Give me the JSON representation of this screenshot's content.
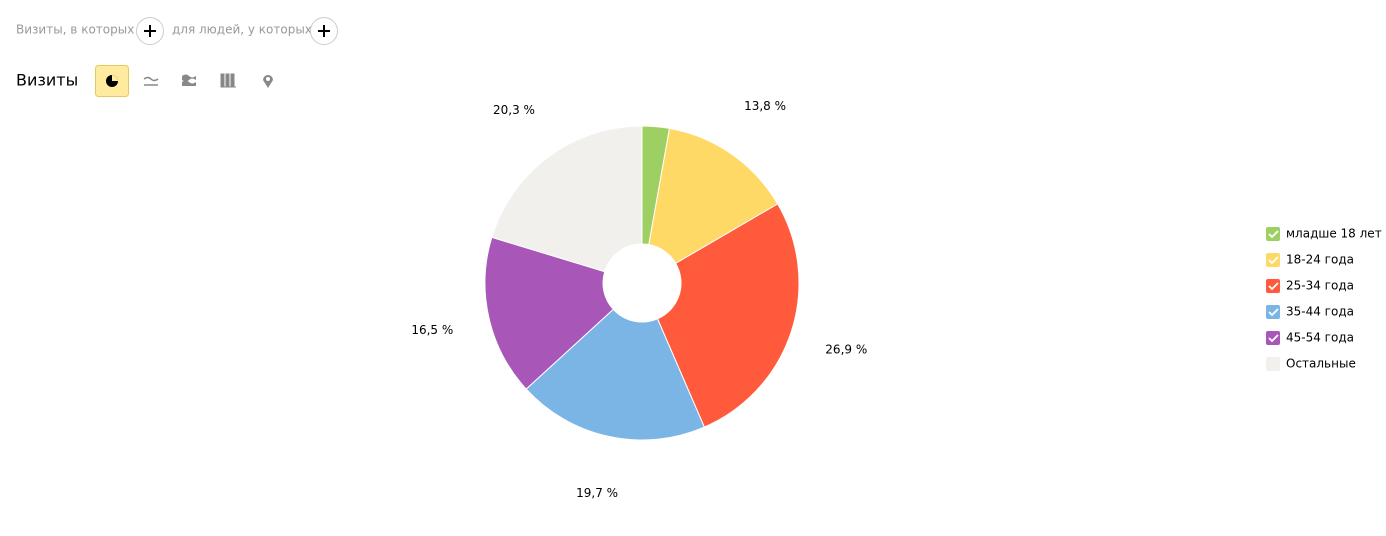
{
  "filters": {
    "visits_label": "Визиты, в которых",
    "people_label": "для людей, у которых"
  },
  "header": {
    "title": "Визиты"
  },
  "chart_data": {
    "type": "pie",
    "categories": [
      "младше 18 лет",
      "18-24 года",
      "25-34 года",
      "35-44 года",
      "45-54 года",
      "Остальные"
    ],
    "values": [
      2.8,
      13.8,
      26.9,
      19.7,
      16.5,
      20.3
    ],
    "value_labels": [
      null,
      "13,8 %",
      "26,9 %",
      "19,7 %",
      "16,5 %",
      "20,3 %"
    ],
    "colors": [
      "#9dcf62",
      "#ffd966",
      "#ff5a3c",
      "#7ab5e6",
      "#a857b9",
      "#f1f0ed"
    ],
    "legend_checked": [
      true,
      true,
      true,
      true,
      true,
      false
    ]
  }
}
